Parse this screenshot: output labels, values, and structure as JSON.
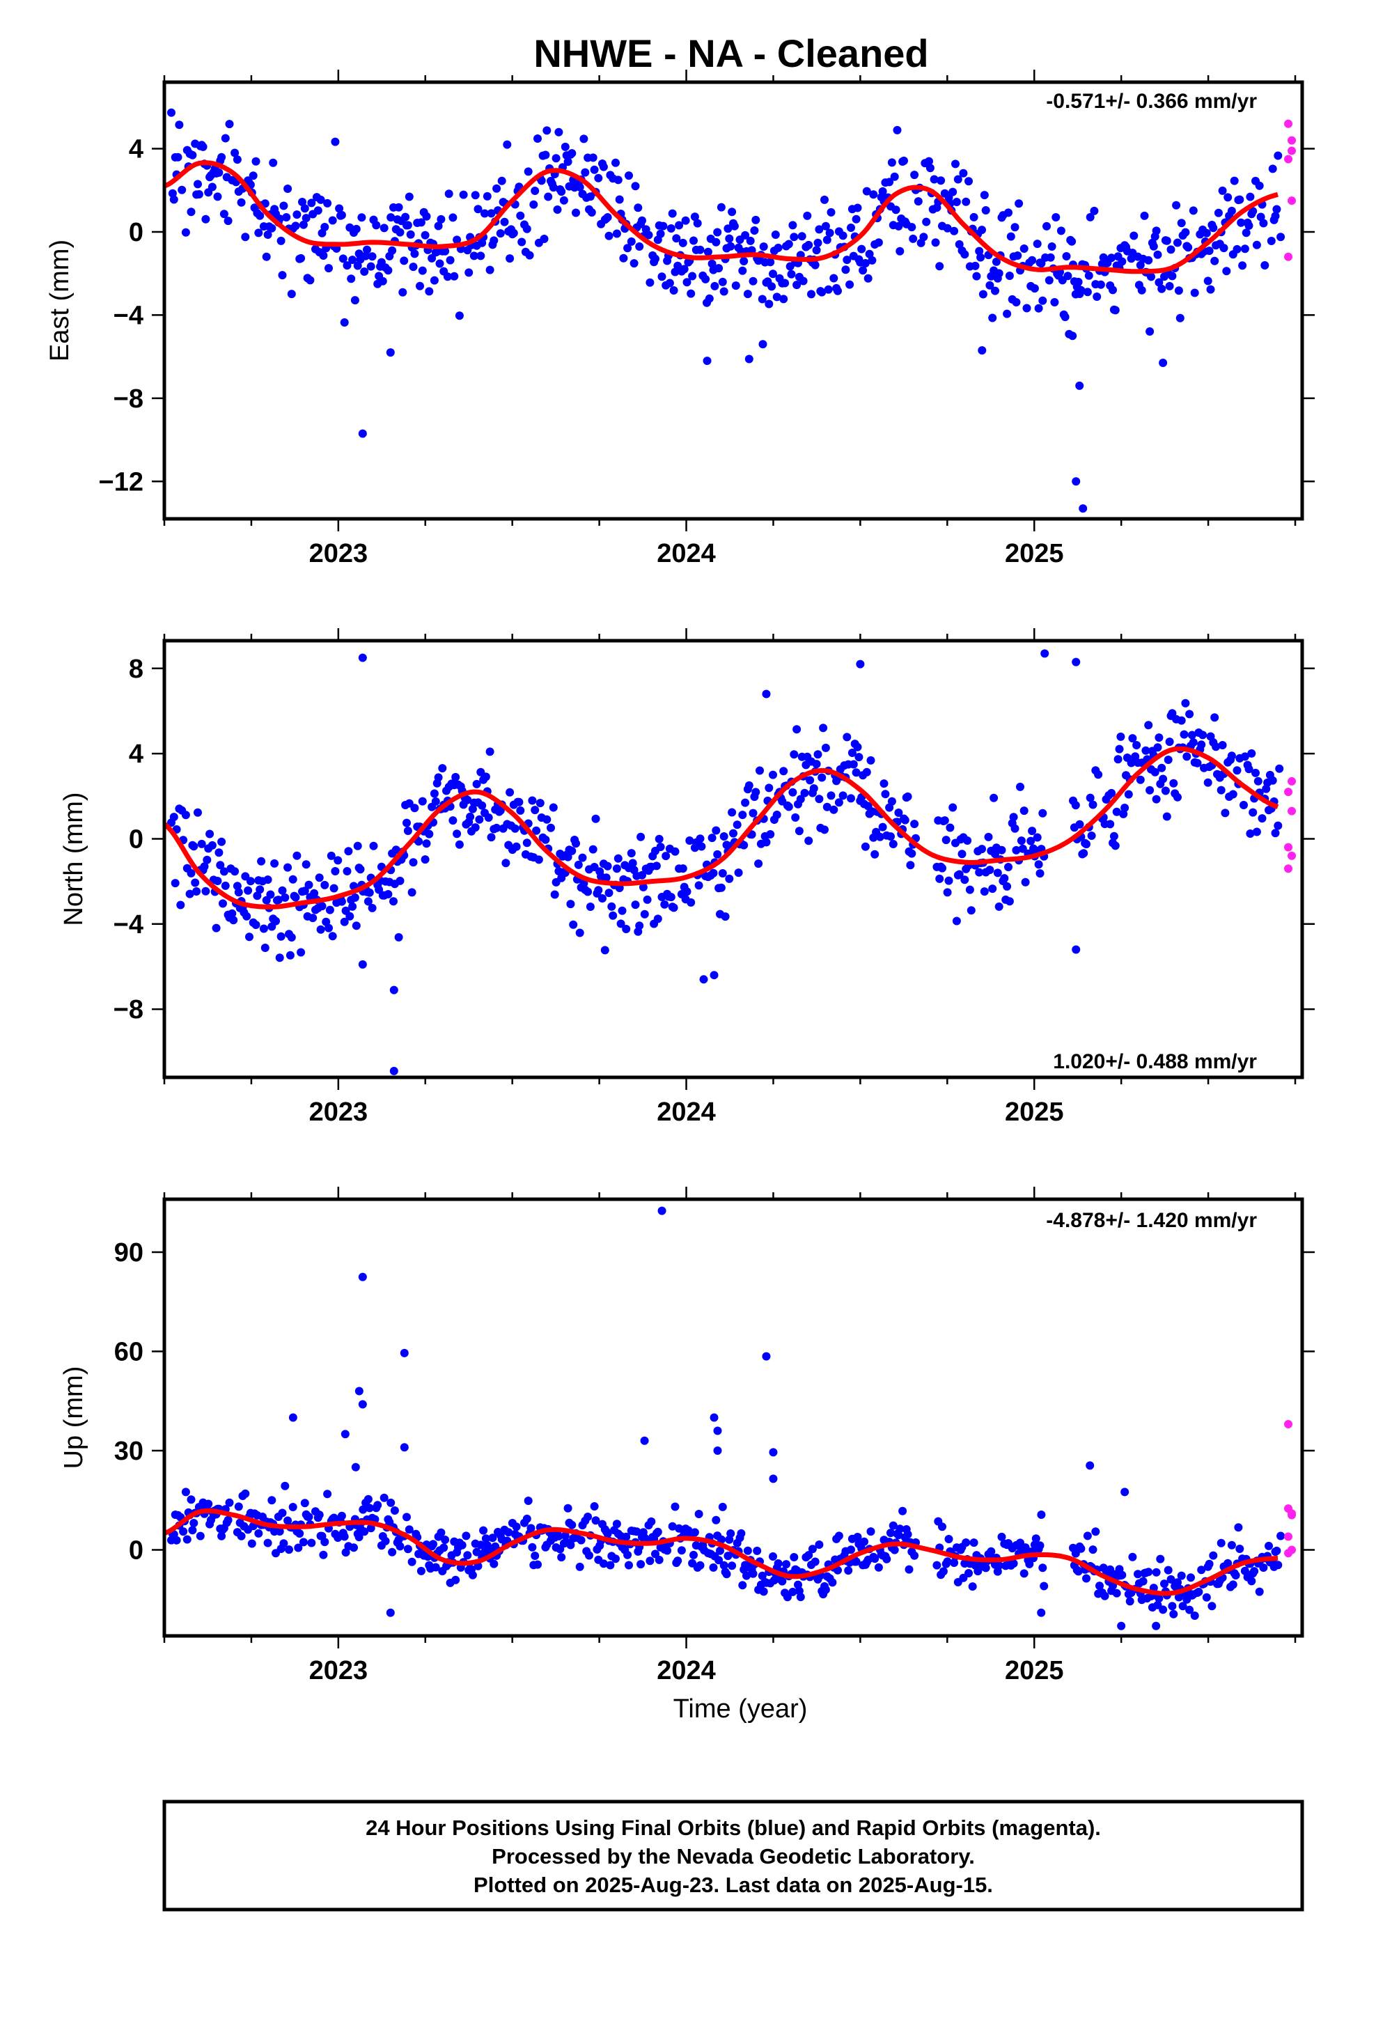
{
  "title": "NHWE  - NA - Cleaned",
  "colors": {
    "final": "#0000ff",
    "rapid": "#ff22ee",
    "model": "#ff0000"
  },
  "footer": {
    "line1": "24 Hour Positions Using Final Orbits (blue) and Rapid Orbits (magenta).",
    "line2": "Processed by the Nevada Geodetic Laboratory.",
    "line3": "Plotted on 2025-Aug-23. Last data on 2025-Aug-15."
  },
  "chart_data": [
    {
      "type": "scatter",
      "ylabel": "East (mm)",
      "xlabel": "",
      "rate": "-0.571+/- 0.366 mm/yr",
      "xlim": [
        2022.5,
        2025.77
      ],
      "ylim": [
        -13.8,
        7.2
      ],
      "xticks": [
        2023,
        2024,
        2025
      ],
      "xtick_labels": [
        "2023",
        "2024",
        "2025"
      ],
      "yticks": [
        4,
        0,
        -4,
        -8,
        -12
      ],
      "ytick_labels": [
        "4",
        "0",
        "−4",
        "−8",
        "−12"
      ],
      "model": {
        "x": [
          2022.5,
          2022.6,
          2022.7,
          2022.8,
          2022.9,
          2023.0,
          2023.1,
          2023.2,
          2023.3,
          2023.4,
          2023.5,
          2023.6,
          2023.7,
          2023.8,
          2023.9,
          2024.0,
          2024.1,
          2024.2,
          2024.3,
          2024.4,
          2024.5,
          2024.6,
          2024.7,
          2024.8,
          2024.9,
          2025.0,
          2025.1,
          2025.2,
          2025.3,
          2025.4,
          2025.5,
          2025.6,
          2025.7
        ],
        "y": [
          2.2,
          3.3,
          2.8,
          0.8,
          -0.4,
          -0.6,
          -0.5,
          -0.6,
          -0.7,
          -0.3,
          1.5,
          2.9,
          2.5,
          0.8,
          -0.6,
          -1.2,
          -1.2,
          -1.1,
          -1.3,
          -1.2,
          -0.2,
          1.8,
          2.0,
          0.3,
          -1.2,
          -1.8,
          -1.7,
          -1.8,
          -1.9,
          -1.7,
          -0.5,
          1.0,
          1.8
        ]
      },
      "amp": 1.3,
      "outliers": [
        [
          2023.07,
          -9.7
        ],
        [
          2023.15,
          -5.8
        ],
        [
          2024.06,
          -6.2
        ],
        [
          2024.22,
          -5.4
        ],
        [
          2024.85,
          -5.7
        ],
        [
          2025.12,
          -12.0
        ],
        [
          2025.14,
          -13.3
        ],
        [
          2025.13,
          -7.4
        ],
        [
          2025.11,
          -5.0
        ]
      ],
      "rapid": [
        [
          2025.73,
          5.2
        ],
        [
          2025.74,
          4.4
        ],
        [
          2025.73,
          3.5
        ],
        [
          2025.74,
          1.5
        ],
        [
          2025.73,
          -1.2
        ],
        [
          2025.74,
          3.9
        ]
      ]
    },
    {
      "type": "scatter",
      "ylabel": "North (mm)",
      "xlabel": "",
      "rate": "1.020+/- 0.488 mm/yr",
      "xlim": [
        2022.5,
        2025.77
      ],
      "ylim": [
        -11.2,
        9.3
      ],
      "xticks": [
        2023,
        2024,
        2025
      ],
      "xtick_labels": [
        "2023",
        "2024",
        "2025"
      ],
      "yticks": [
        8,
        4,
        0,
        -4,
        -8
      ],
      "ytick_labels": [
        "8",
        "4",
        "0",
        "−4",
        "−8"
      ],
      "model": {
        "x": [
          2022.5,
          2022.6,
          2022.7,
          2022.8,
          2022.9,
          2023.0,
          2023.1,
          2023.2,
          2023.3,
          2023.4,
          2023.5,
          2023.6,
          2023.7,
          2023.8,
          2023.9,
          2024.0,
          2024.1,
          2024.2,
          2024.3,
          2024.4,
          2024.5,
          2024.6,
          2024.7,
          2024.8,
          2024.9,
          2025.0,
          2025.1,
          2025.2,
          2025.3,
          2025.4,
          2025.5,
          2025.6,
          2025.7
        ],
        "y": [
          0.7,
          -1.6,
          -2.9,
          -3.2,
          -3.0,
          -2.7,
          -2.0,
          -0.3,
          1.5,
          2.2,
          1.2,
          -0.6,
          -1.8,
          -2.1,
          -2.0,
          -1.8,
          -1.0,
          0.8,
          2.6,
          3.2,
          2.3,
          0.6,
          -0.7,
          -1.1,
          -1.0,
          -0.8,
          -0.1,
          1.3,
          3.1,
          4.2,
          3.8,
          2.5,
          1.5
        ]
      },
      "amp": 1.2,
      "outliers": [
        [
          2023.07,
          8.5
        ],
        [
          2023.16,
          -7.1
        ],
        [
          2023.16,
          -10.9
        ],
        [
          2023.07,
          -5.9
        ],
        [
          2024.05,
          -6.6
        ],
        [
          2024.08,
          -6.4
        ],
        [
          2024.5,
          8.2
        ],
        [
          2025.03,
          8.7
        ],
        [
          2025.12,
          8.3
        ],
        [
          2025.12,
          -5.2
        ],
        [
          2024.23,
          6.8
        ]
      ],
      "rapid": [
        [
          2025.74,
          2.7
        ],
        [
          2025.73,
          2.2
        ],
        [
          2025.74,
          1.3
        ],
        [
          2025.73,
          -0.4
        ],
        [
          2025.74,
          -0.8
        ],
        [
          2025.73,
          -1.4
        ]
      ]
    },
    {
      "type": "scatter",
      "ylabel": "Up (mm)",
      "xlabel": "Time (year)",
      "rate": "-4.878+/- 1.420 mm/yr",
      "xlim": [
        2022.5,
        2025.77
      ],
      "ylim": [
        -26,
        106
      ],
      "xticks": [
        2023,
        2024,
        2025
      ],
      "xtick_labels": [
        "2023",
        "2024",
        "2025"
      ],
      "yticks": [
        90,
        60,
        30,
        0
      ],
      "ytick_labels": [
        "90",
        "60",
        "30",
        "0"
      ],
      "model": {
        "x": [
          2022.5,
          2022.6,
          2022.7,
          2022.8,
          2022.9,
          2023.0,
          2023.1,
          2023.2,
          2023.3,
          2023.4,
          2023.5,
          2023.6,
          2023.7,
          2023.8,
          2023.9,
          2024.0,
          2024.1,
          2024.2,
          2024.3,
          2024.4,
          2024.5,
          2024.6,
          2024.7,
          2024.8,
          2024.9,
          2025.0,
          2025.1,
          2025.2,
          2025.3,
          2025.4,
          2025.5,
          2025.6,
          2025.7
        ],
        "y": [
          5.0,
          11.5,
          10.5,
          7.5,
          7.0,
          8.0,
          8.0,
          4.0,
          -3.0,
          -3.5,
          2.0,
          6.0,
          5.0,
          2.5,
          2.0,
          3.5,
          1.5,
          -4.0,
          -8.0,
          -6.0,
          -1.0,
          1.8,
          0.0,
          -2.5,
          -3.0,
          -1.5,
          -2.5,
          -8.0,
          -12.0,
          -13.0,
          -9.0,
          -4.0,
          -2.5
        ]
      },
      "amp": 4.0,
      "outliers": [
        [
          2022.87,
          40
        ],
        [
          2023.02,
          35
        ],
        [
          2023.05,
          25
        ],
        [
          2023.06,
          48
        ],
        [
          2023.07,
          44
        ],
        [
          2023.07,
          82.5
        ],
        [
          2023.19,
          59.5
        ],
        [
          2023.19,
          31
        ],
        [
          2023.15,
          -19
        ],
        [
          2023.88,
          33
        ],
        [
          2023.93,
          102.5
        ],
        [
          2024.08,
          40
        ],
        [
          2024.09,
          36
        ],
        [
          2024.09,
          30
        ],
        [
          2024.23,
          58.5
        ],
        [
          2024.25,
          29.5
        ],
        [
          2024.25,
          21.5
        ],
        [
          2025.02,
          -19
        ],
        [
          2025.16,
          25.5
        ],
        [
          2025.26,
          17.5
        ],
        [
          2025.25,
          -23
        ],
        [
          2025.35,
          -23
        ]
      ],
      "rapid": [
        [
          2025.73,
          38
        ],
        [
          2025.73,
          12.5
        ],
        [
          2025.74,
          11
        ],
        [
          2025.74,
          10.5
        ],
        [
          2025.73,
          4
        ],
        [
          2025.74,
          0
        ],
        [
          2025.73,
          -1
        ]
      ]
    }
  ]
}
